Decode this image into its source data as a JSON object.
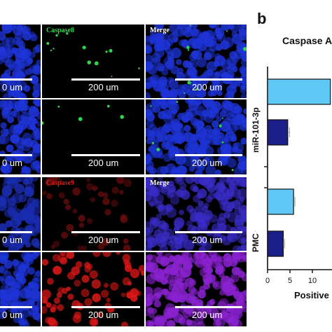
{
  "figure": {
    "panel_letter_b": "b",
    "scale_bar_text": "200 um",
    "partial_scale_bar_text": "0 um",
    "tile_labels": {
      "caspase8": "Caspase8",
      "merge": "Merge",
      "caspase9": "Caspase9"
    },
    "colors": {
      "nucleus_blue": "#1e34d8",
      "caspase8_green": "#2fd64a",
      "caspase9_red": "#e01818",
      "merge_purple": "#8a22d0"
    }
  },
  "chart_data": {
    "type": "bar",
    "orientation": "horizontal",
    "title": "Caspase A",
    "xlabel": "Positive",
    "ylabel": "",
    "xlim": [
      0,
      12
    ],
    "xticks": [
      0,
      5,
      10
    ],
    "groups": [
      "miR-101-3p",
      "PMC"
    ],
    "series": [
      {
        "color": "#5ec8f7",
        "values": [
          14,
          5.8
        ]
      },
      {
        "color": "#1b1f8a",
        "values": [
          4.5,
          3.5
        ]
      }
    ],
    "errors": [
      [
        0,
        0.4
      ],
      [
        0.3,
        0.3
      ]
    ]
  }
}
